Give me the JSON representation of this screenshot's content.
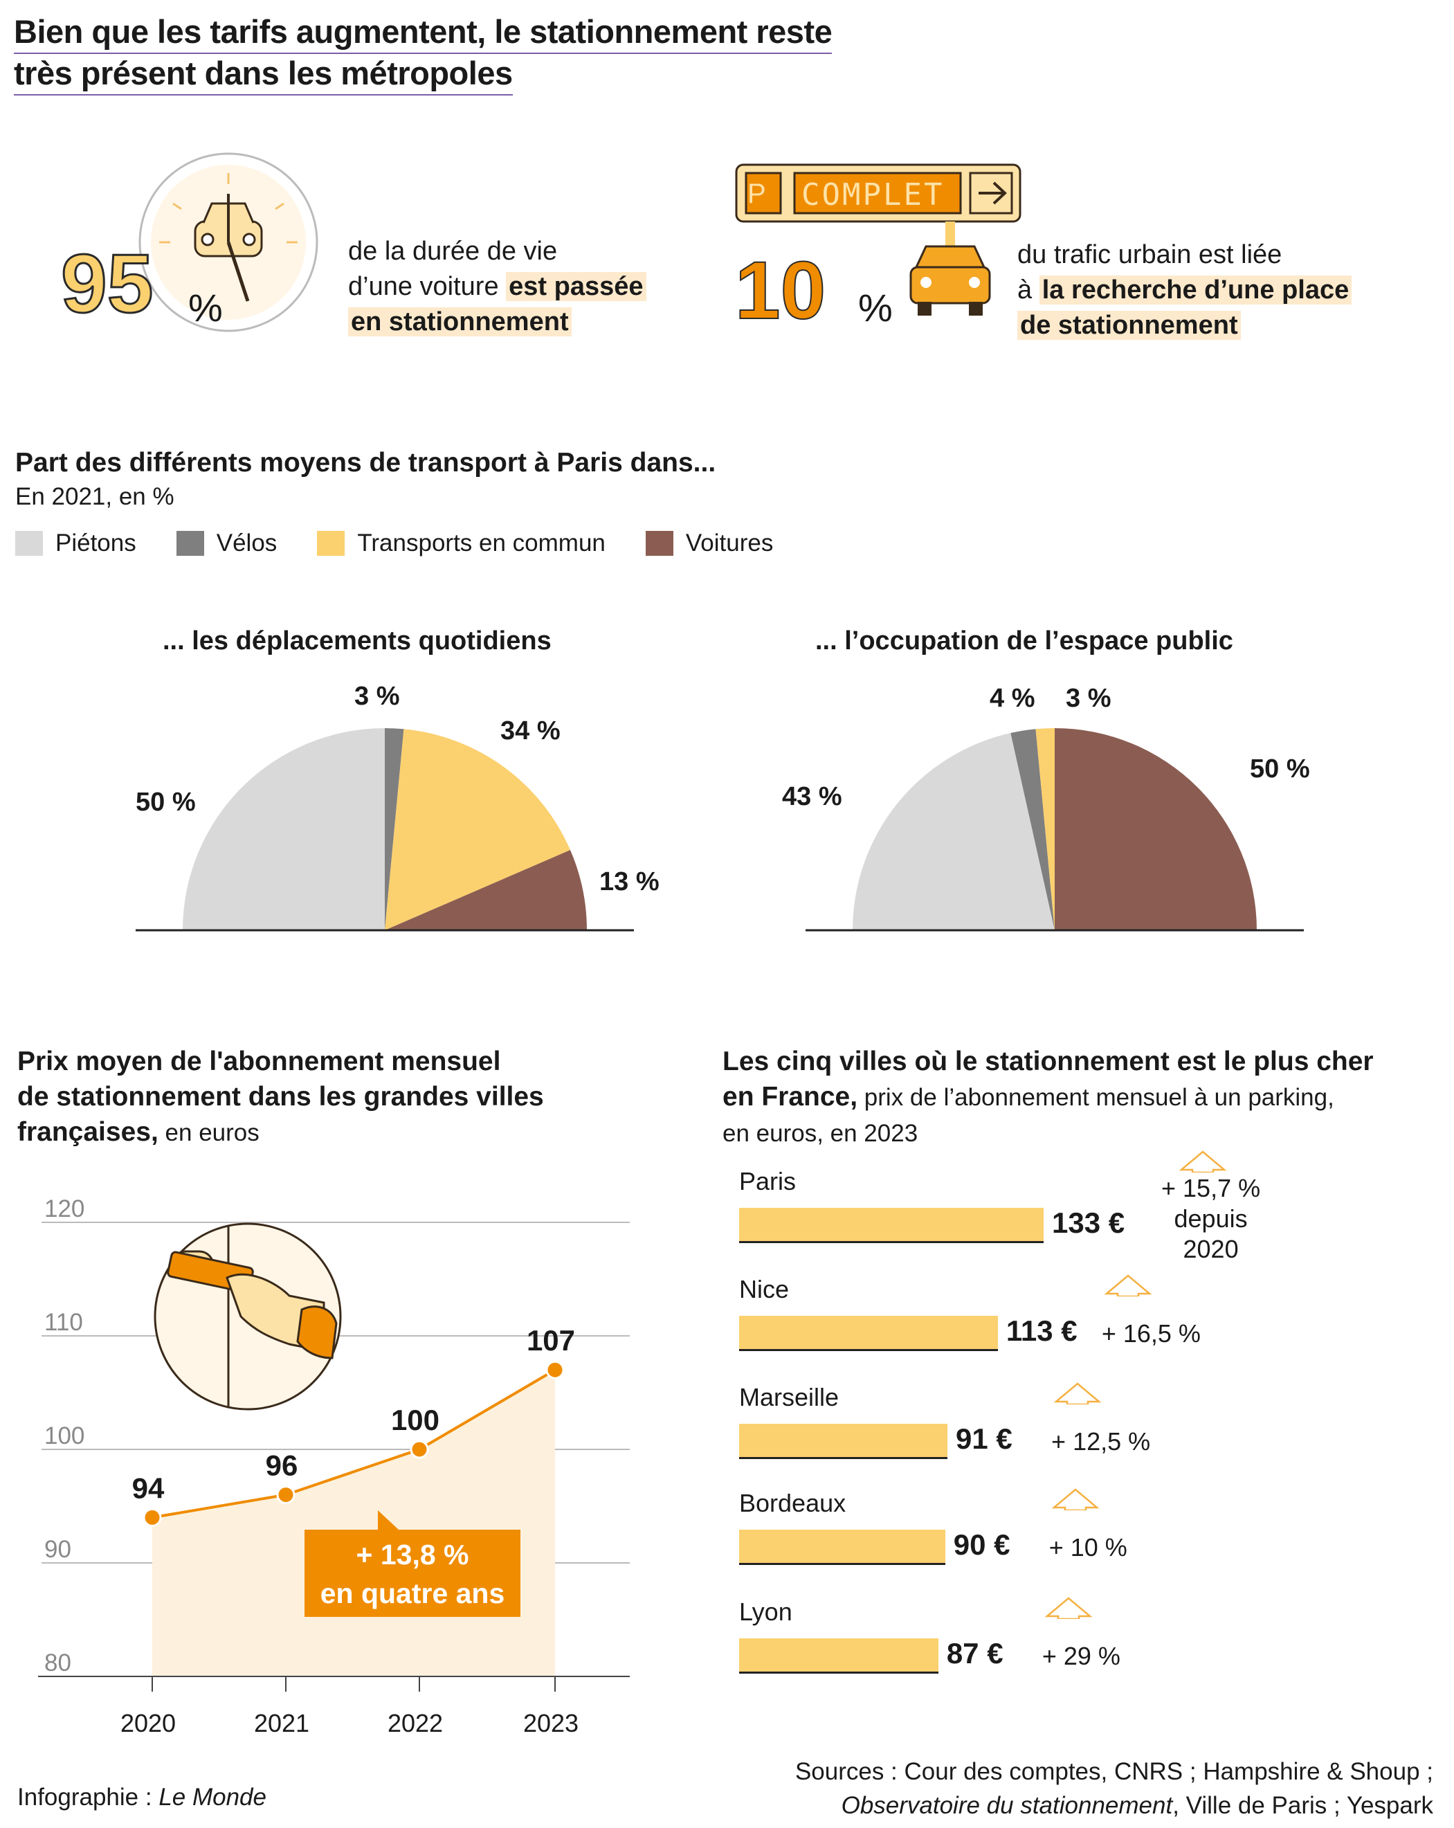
{
  "title": {
    "line1": "Bien que les tarifs augmentent, le stationnement reste",
    "line2": "très présent dans les métropoles"
  },
  "stat1": {
    "value": "95",
    "unit": "%",
    "text1": "de la durée de vie",
    "text2": "d’une voiture ",
    "text2_bold": "est passée",
    "text3_bold": "en stationnement",
    "icon": "clock-car-icon"
  },
  "stat2": {
    "value": "10",
    "unit": "%",
    "sign_p": "P",
    "sign_text": "COMPLET",
    "text1": "du trafic urbain est liée",
    "text2": "à ",
    "text2_bold": "la recherche d’une place",
    "text3_bold": "de stationnement",
    "icon": "parking-sign-car-icon"
  },
  "transport": {
    "title": "Part des différents moyens de transport à Paris dans...",
    "subtitle": "En 2021, en %",
    "legend": [
      {
        "label": "Piétons",
        "color": "#d9d9d9"
      },
      {
        "label": "Vélos",
        "color": "#7f7f7f"
      },
      {
        "label": "Transports en commun",
        "color": "#fbd06f"
      },
      {
        "label": "Voitures",
        "color": "#8b5d52"
      }
    ],
    "pie1_title": "... les déplacements quotidiens",
    "pie2_title": "... l’occupation de l’espace public"
  },
  "price": {
    "title1": "Prix moyen de l'abonnement mensuel",
    "title2": "de stationnement dans les grandes villes",
    "title3_bold": "françaises,",
    "title3_rest": " en euros",
    "callout1": "+ 13,8 %",
    "callout2": "en quatre ans",
    "icon": "hand-card-icon"
  },
  "cities": {
    "title1": "Les cinq villes où le stationnement est le plus cher",
    "title2_bold": "en France,",
    "title2_rest": " prix de l’abonnement mensuel à un parking,",
    "title3": "en euros, en 2023"
  },
  "chart_data": [
    {
      "type": "pie",
      "title": "... les déplacements quotidiens",
      "labels": [
        "Piétons",
        "Vélos",
        "Transports en commun",
        "Voitures"
      ],
      "values": [
        50,
        3,
        34,
        13
      ],
      "value_labels": [
        "50 %",
        "3 %",
        "34 %",
        "13 %"
      ],
      "colors": [
        "#d9d9d9",
        "#7f7f7f",
        "#fbd06f",
        "#8b5d52"
      ]
    },
    {
      "type": "pie",
      "title": "... l’occupation de l’espace public",
      "labels": [
        "Piétons",
        "Vélos",
        "Transports en commun",
        "Voitures"
      ],
      "values": [
        43,
        4,
        3,
        50
      ],
      "value_labels": [
        "43 %",
        "4 %",
        "3 %",
        "50 %"
      ],
      "colors": [
        "#d9d9d9",
        "#7f7f7f",
        "#fbd06f",
        "#8b5d52"
      ]
    },
    {
      "type": "area",
      "x": [
        "2020",
        "2021",
        "2022",
        "2023"
      ],
      "values": [
        94,
        96,
        100,
        107
      ],
      "ylim": [
        80,
        120
      ],
      "yticks": [
        "80",
        "90",
        "100",
        "110",
        "120"
      ],
      "grid": true
    },
    {
      "type": "bar",
      "orientation": "horizontal",
      "categories": [
        "Paris",
        "Nice",
        "Marseille",
        "Bordeaux",
        "Lyon"
      ],
      "values": [
        133,
        113,
        91,
        90,
        87
      ],
      "value_labels": [
        "133 €",
        "113 €",
        "91 €",
        "90 €",
        "87 €"
      ],
      "changes": [
        [
          "+ 15,7 %",
          "depuis",
          "2020"
        ],
        [
          "+ 16,5 %"
        ],
        [
          "+ 12,5 %"
        ],
        [
          "+ 10 %"
        ],
        [
          "+ 29 %"
        ]
      ]
    }
  ],
  "footer": {
    "credit_prefix": "Infographie : ",
    "credit_italic": "Le Monde",
    "sources1": "Sources : Cour des comptes, CNRS ; Hampshire & Shoup ;",
    "sources2_italic": "Observatoire du stationnement",
    "sources2_rest": ", Ville de Paris ; Yespark"
  }
}
